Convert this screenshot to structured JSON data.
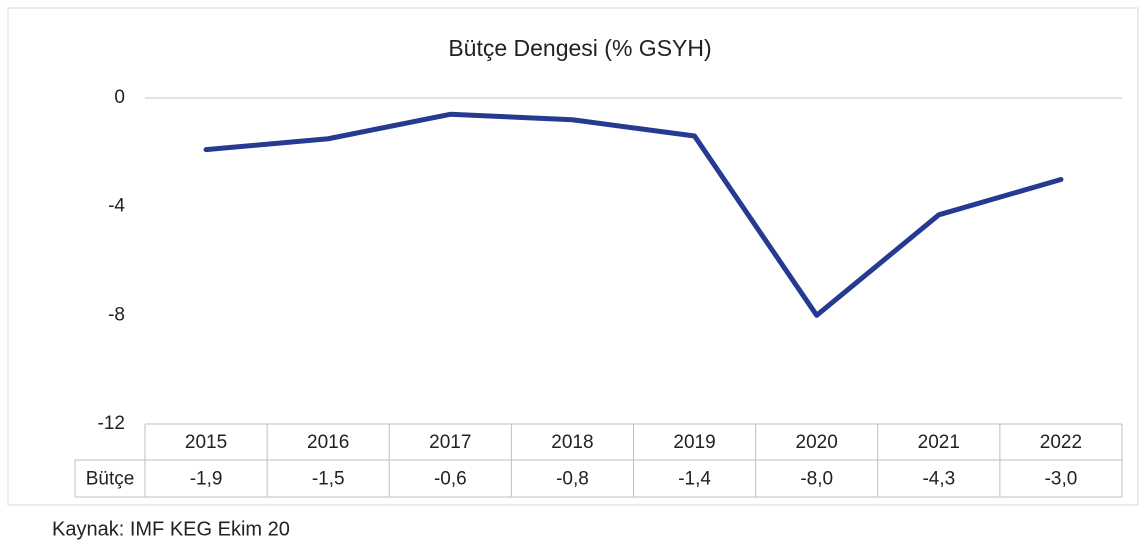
{
  "chart_data": {
    "type": "line",
    "title": "Bütçe Dengesi (% GSYH)",
    "categories": [
      "2015",
      "2016",
      "2017",
      "2018",
      "2019",
      "2020",
      "2021",
      "2022"
    ],
    "series": [
      {
        "name": "Bütçe",
        "color": "#263a91",
        "values": [
          -1.9,
          -1.5,
          -0.6,
          -0.8,
          -1.4,
          -8.0,
          -4.3,
          -3.0
        ],
        "value_labels": [
          "-1,9",
          "-1,5",
          "-0,6",
          "-0,8",
          "-1,4",
          "-8,0",
          "-4,3",
          "-3,0"
        ]
      }
    ],
    "ylim": [
      -12,
      0
    ],
    "yticks": [
      0,
      -4,
      -8,
      -12
    ],
    "grid": false,
    "source": "Kaynak: IMF KEG Ekim 20"
  }
}
